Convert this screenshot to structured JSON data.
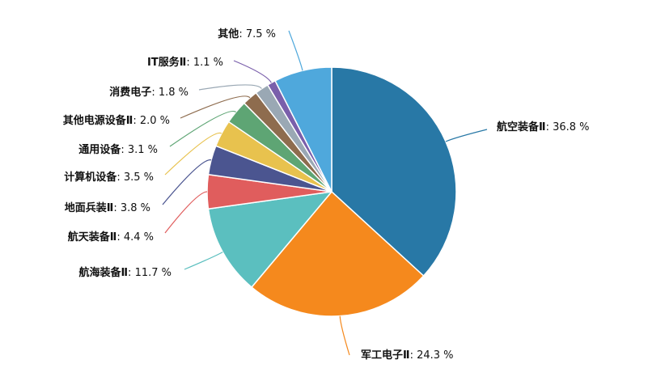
{
  "chart_data": {
    "type": "pie",
    "title": "",
    "categories": [
      "航空装备Ⅱ",
      "军工电子Ⅱ",
      "航海装备Ⅱ",
      "航天装备Ⅱ",
      "地面兵装Ⅱ",
      "计算机设备",
      "通用设备",
      "其他电源设备Ⅱ",
      "消费电子",
      "IT服务Ⅱ",
      "其他"
    ],
    "values": [
      36.8,
      24.3,
      11.7,
      4.4,
      3.8,
      3.5,
      3.1,
      2.0,
      1.8,
      1.1,
      7.5
    ],
    "value_labels": [
      "36.8 %",
      "24.3 %",
      "11.7 %",
      "4.4 %",
      "3.8 %",
      "3.5 %",
      "3.1 %",
      "2.0 %",
      "1.8 %",
      "1.1 %",
      "7.5 %"
    ],
    "colors": [
      "#2878a6",
      "#f5891d",
      "#5bbfbf",
      "#e05d5d",
      "#4b5590",
      "#e8c24e",
      "#5ea574",
      "#8e6c4e",
      "#9aa8b4",
      "#7a5fab",
      "#4fa8dc"
    ],
    "start_angle": "12 o'clock",
    "direction": "clockwise",
    "legend": "none",
    "label_separator": ": "
  }
}
